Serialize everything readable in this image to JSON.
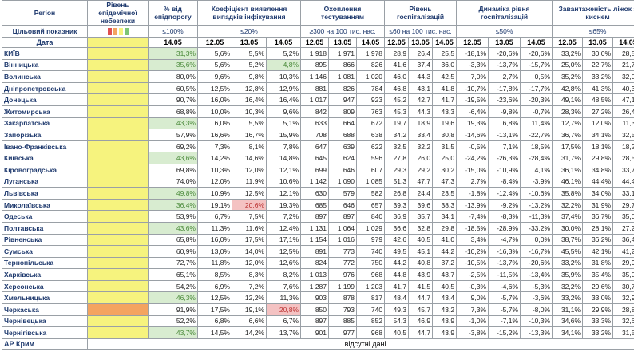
{
  "headers": {
    "region": "Регіон",
    "epi": "Рівень епідемічної небезпеки",
    "pct": "% від епідпорогу",
    "detect": "Коефіцієнт виявлення випадків інфікування",
    "test": "Охоплення тестуванням",
    "hosp": "Рівень госпіталізацій",
    "dyn": "Динаміка рівня госпіталізацій",
    "oxy": "Завантаженість ліжок з киснем"
  },
  "targets": {
    "label": "Цільовий показник",
    "pct": "≤100%",
    "detect": "≤20%",
    "test": "≥300 на 100 тис. нас.",
    "hosp": "≤60 на 100 тис. нас.",
    "dyn": "≤50%",
    "oxy": "≤65%"
  },
  "dates": {
    "label": "Дата",
    "pct": [
      "14.05"
    ],
    "triple": [
      "12.05",
      "13.05",
      "14.05"
    ]
  },
  "swatch_colors": [
    "#e05050",
    "#f4a460",
    "#f6f37e",
    "#7cc576"
  ],
  "rows": [
    {
      "name": "КИЇВ",
      "pct": "31,3%",
      "detect": [
        "5,6%",
        "5,5%",
        "5,2%"
      ],
      "test": [
        "1 918",
        "1 971",
        "1 978"
      ],
      "hosp": [
        "28,9",
        "26,4",
        "25,5"
      ],
      "dyn": [
        "-18,1%",
        "-20,6%",
        "-20,6%"
      ],
      "oxy": [
        "33,2%",
        "30,0%",
        "28,5%"
      ]
    },
    {
      "name": "Вінницька",
      "pct": "35,6%",
      "detect": [
        "5,6%",
        "5,2%",
        "4,8%"
      ],
      "test": [
        "895",
        "866",
        "826"
      ],
      "hosp": [
        "41,6",
        "37,4",
        "36,0"
      ],
      "dyn": [
        "-3,3%",
        "-13,7%",
        "-15,7%"
      ],
      "oxy": [
        "25,0%",
        "22,7%",
        "21,7%"
      ]
    },
    {
      "name": "Волинська",
      "pct": "80,0%",
      "detect": [
        "9,6%",
        "9,8%",
        "10,3%"
      ],
      "test": [
        "1 146",
        "1 081",
        "1 020"
      ],
      "hosp": [
        "46,0",
        "44,3",
        "42,5"
      ],
      "dyn": [
        "7,0%",
        "2,7%",
        "0,5%"
      ],
      "oxy": [
        "35,2%",
        "33,2%",
        "32,0%"
      ]
    },
    {
      "name": "Дніпропетровська",
      "pct": "60,5%",
      "detect": [
        "12,5%",
        "12,8%",
        "12,9%"
      ],
      "test": [
        "881",
        "826",
        "784"
      ],
      "hosp": [
        "46,8",
        "43,1",
        "41,8"
      ],
      "dyn": [
        "-10,7%",
        "-17,8%",
        "-17,7%"
      ],
      "oxy": [
        "42,8%",
        "41,3%",
        "40,3%"
      ]
    },
    {
      "name": "Донецька",
      "pct": "90,7%",
      "detect": [
        "16,0%",
        "16,4%",
        "16,4%"
      ],
      "test": [
        "1 017",
        "947",
        "923"
      ],
      "hosp": [
        "45,2",
        "42,7",
        "41,7"
      ],
      "dyn": [
        "-19,5%",
        "-23,6%",
        "-20,3%"
      ],
      "oxy": [
        "49,1%",
        "48,5%",
        "47,1%"
      ]
    },
    {
      "name": "Житомирська",
      "pct": "68,8%",
      "detect": [
        "10,0%",
        "10,3%",
        "9,6%"
      ],
      "test": [
        "842",
        "809",
        "763"
      ],
      "hosp": [
        "45,3",
        "44,3",
        "43,3"
      ],
      "dyn": [
        "-6,4%",
        "-9,8%",
        "-0,7%"
      ],
      "oxy": [
        "28,3%",
        "27,2%",
        "26,4%"
      ]
    },
    {
      "name": "Закарпатська",
      "pct": "43,3%",
      "detect": [
        "6,0%",
        "5,5%",
        "5,1%"
      ],
      "test": [
        "633",
        "664",
        "672"
      ],
      "hosp": [
        "19,7",
        "18,9",
        "19,6"
      ],
      "dyn": [
        "19,3%",
        "6,8%",
        "11,4%"
      ],
      "oxy": [
        "12,7%",
        "12,0%",
        "11,3%"
      ]
    },
    {
      "name": "Запорізька",
      "pct": "57,9%",
      "detect": [
        "16,6%",
        "16,7%",
        "15,9%"
      ],
      "test": [
        "708",
        "688",
        "638"
      ],
      "hosp": [
        "34,2",
        "33,4",
        "30,8"
      ],
      "dyn": [
        "-14,6%",
        "-13,1%",
        "-22,7%"
      ],
      "oxy": [
        "36,7%",
        "34,1%",
        "32,5%"
      ]
    },
    {
      "name": "Івано-Франківська",
      "pct": "69,2%",
      "detect": [
        "7,3%",
        "8,1%",
        "7,8%"
      ],
      "test": [
        "647",
        "639",
        "622"
      ],
      "hosp": [
        "32,5",
        "32,2",
        "31,5"
      ],
      "dyn": [
        "-0,5%",
        "7,1%",
        "18,5%"
      ],
      "oxy": [
        "17,5%",
        "18,1%",
        "18,2%"
      ]
    },
    {
      "name": "Київська",
      "pct": "43,6%",
      "detect": [
        "14,2%",
        "14,6%",
        "14,8%"
      ],
      "test": [
        "645",
        "624",
        "596"
      ],
      "hosp": [
        "27,8",
        "26,0",
        "25,0"
      ],
      "dyn": [
        "-24,2%",
        "-26,3%",
        "-28,4%"
      ],
      "oxy": [
        "31,7%",
        "29,8%",
        "28,5%"
      ]
    },
    {
      "name": "Кіровоградська",
      "pct": "69,8%",
      "detect": [
        "10,3%",
        "12,0%",
        "12,1%"
      ],
      "test": [
        "699",
        "646",
        "607"
      ],
      "hosp": [
        "29,3",
        "29,2",
        "30,2"
      ],
      "dyn": [
        "-15,0%",
        "-10,9%",
        "4,1%"
      ],
      "oxy": [
        "36,1%",
        "34,8%",
        "33,7%"
      ]
    },
    {
      "name": "Луганська",
      "pct": "74,0%",
      "detect": [
        "12,0%",
        "11,9%",
        "10,6%"
      ],
      "test": [
        "1 142",
        "1 090",
        "1 085"
      ],
      "hosp": [
        "51,3",
        "47,7",
        "47,3"
      ],
      "dyn": [
        "2,7%",
        "-8,4%",
        "-3,9%"
      ],
      "oxy": [
        "46,1%",
        "44,4%",
        "44,4%"
      ]
    },
    {
      "name": "Львівська",
      "pct": "49,8%",
      "detect": [
        "10,9%",
        "12,5%",
        "12,1%"
      ],
      "test": [
        "630",
        "579",
        "582"
      ],
      "hosp": [
        "26,8",
        "24,4",
        "23,5"
      ],
      "dyn": [
        "-1,8%",
        "-12,4%",
        "-10,6%"
      ],
      "oxy": [
        "35,8%",
        "34,0%",
        "33,1%"
      ]
    },
    {
      "name": "Миколаївська",
      "pct": "36,4%",
      "detect": [
        "19,1%",
        "20,6%",
        "19,3%"
      ],
      "test": [
        "685",
        "646",
        "657"
      ],
      "hosp": [
        "39,3",
        "39,6",
        "38,3"
      ],
      "dyn": [
        "-13,9%",
        "-9,2%",
        "-13,2%"
      ],
      "oxy": [
        "32,2%",
        "31,9%",
        "29,7%"
      ]
    },
    {
      "name": "Одеська",
      "pct": "53,9%",
      "detect": [
        "6,7%",
        "7,5%",
        "7,2%"
      ],
      "test": [
        "897",
        "897",
        "840"
      ],
      "hosp": [
        "36,9",
        "35,7",
        "34,1"
      ],
      "dyn": [
        "-7,4%",
        "-8,3%",
        "-11,3%"
      ],
      "oxy": [
        "37,4%",
        "36,7%",
        "35,0%"
      ]
    },
    {
      "name": "Полтавська",
      "pct": "43,6%",
      "detect": [
        "11,3%",
        "11,6%",
        "12,4%"
      ],
      "test": [
        "1 131",
        "1 064",
        "1 029"
      ],
      "hosp": [
        "36,6",
        "32,8",
        "29,8"
      ],
      "dyn": [
        "-18,5%",
        "-28,9%",
        "-33,2%"
      ],
      "oxy": [
        "30,0%",
        "28,1%",
        "27,2%"
      ]
    },
    {
      "name": "Рівненська",
      "pct": "65,8%",
      "detect": [
        "16,0%",
        "17,5%",
        "17,1%"
      ],
      "test": [
        "1 154",
        "1 016",
        "979"
      ],
      "hosp": [
        "42,6",
        "40,5",
        "41,0"
      ],
      "dyn": [
        "3,4%",
        "-4,7%",
        "0,0%"
      ],
      "oxy": [
        "38,7%",
        "36,2%",
        "36,4%"
      ]
    },
    {
      "name": "Сумська",
      "pct": "60,9%",
      "detect": [
        "13,0%",
        "14,0%",
        "12,5%"
      ],
      "test": [
        "891",
        "773",
        "740"
      ],
      "hosp": [
        "49,5",
        "45,1",
        "44,2"
      ],
      "dyn": [
        "-10,2%",
        "-16,3%",
        "-16,7%"
      ],
      "oxy": [
        "45,5%",
        "42,1%",
        "41,2%"
      ]
    },
    {
      "name": "Тернопільська",
      "pct": "72,7%",
      "detect": [
        "11,8%",
        "12,0%",
        "12,6%"
      ],
      "test": [
        "824",
        "772",
        "750"
      ],
      "hosp": [
        "44,2",
        "40,8",
        "37,2"
      ],
      "dyn": [
        "-10,5%",
        "-13,7%",
        "-20,6%"
      ],
      "oxy": [
        "33,2%",
        "31,8%",
        "29,9%"
      ]
    },
    {
      "name": "Харківська",
      "pct": "65,1%",
      "detect": [
        "8,5%",
        "8,3%",
        "8,2%"
      ],
      "test": [
        "1 013",
        "976",
        "968"
      ],
      "hosp": [
        "44,8",
        "43,9",
        "43,7"
      ],
      "dyn": [
        "-2,5%",
        "-11,5%",
        "-13,4%"
      ],
      "oxy": [
        "35,9%",
        "35,4%",
        "35,0%"
      ]
    },
    {
      "name": "Херсонська",
      "pct": "54,2%",
      "detect": [
        "6,9%",
        "7,2%",
        "7,6%"
      ],
      "test": [
        "1 287",
        "1 199",
        "1 203"
      ],
      "hosp": [
        "41,7",
        "41,5",
        "40,5"
      ],
      "dyn": [
        "-0,3%",
        "-4,6%",
        "-5,3%"
      ],
      "oxy": [
        "32,2%",
        "29,6%",
        "30,7%"
      ]
    },
    {
      "name": "Хмельницька",
      "pct": "46,3%",
      "detect": [
        "12,5%",
        "12,2%",
        "11,3%"
      ],
      "test": [
        "903",
        "878",
        "817"
      ],
      "hosp": [
        "48,4",
        "44,7",
        "43,4"
      ],
      "dyn": [
        "9,0%",
        "-5,7%",
        "-3,6%"
      ],
      "oxy": [
        "33,2%",
        "33,0%",
        "32,9%"
      ]
    },
    {
      "name": "Черкаська",
      "pct": "91,9%",
      "detect": [
        "17,5%",
        "19,1%",
        "20,8%"
      ],
      "test": [
        "850",
        "793",
        "740"
      ],
      "hosp": [
        "49,3",
        "45,7",
        "43,2"
      ],
      "dyn": [
        "7,3%",
        "-5,7%",
        "-8,0%"
      ],
      "oxy": [
        "31,1%",
        "29,9%",
        "28,8%"
      ]
    },
    {
      "name": "Чернівецька",
      "pct": "52,2%",
      "detect": [
        "6,8%",
        "6,6%",
        "6,7%"
      ],
      "test": [
        "897",
        "885",
        "852"
      ],
      "hosp": [
        "54,3",
        "46,9",
        "43,9"
      ],
      "dyn": [
        "-1,0%",
        "-7,1%",
        "-10,3%"
      ],
      "oxy": [
        "34,6%",
        "33,3%",
        "32,6%"
      ]
    },
    {
      "name": "Чернігівська",
      "pct": "43,7%",
      "detect": [
        "14,5%",
        "14,2%",
        "13,7%"
      ],
      "test": [
        "901",
        "977",
        "968"
      ],
      "hosp": [
        "40,5",
        "44,7",
        "43,9"
      ],
      "dyn": [
        "-3,8%",
        "-15,2%",
        "-13,3%"
      ],
      "oxy": [
        "34,1%",
        "33,2%",
        "31,5%"
      ]
    }
  ],
  "crimea": {
    "name": "АР Крим",
    "note": "відсутні дані"
  }
}
